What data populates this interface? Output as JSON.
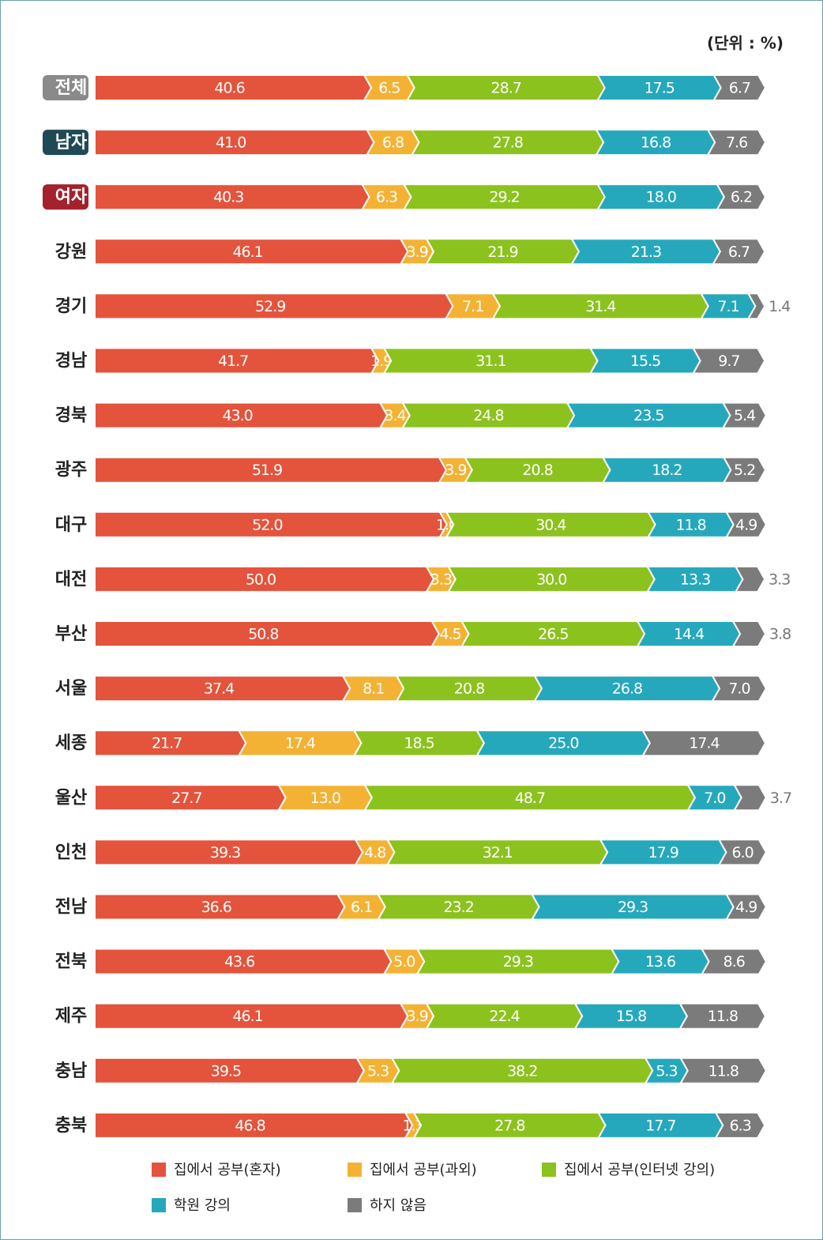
{
  "chart_data": {
    "type": "stacked-bar-horizontal",
    "unit_label": "(단위 : %)",
    "categories": [
      "전체",
      "남자",
      "여자",
      "강원",
      "경기",
      "경남",
      "경북",
      "광주",
      "대구",
      "대전",
      "부산",
      "서울",
      "세종",
      "울산",
      "인천",
      "전남",
      "전북",
      "제주",
      "충남",
      "충북"
    ],
    "series": [
      {
        "name": "집에서 공부(혼자)",
        "color": "#e4533c",
        "values": [
          40.6,
          41.0,
          40.3,
          46.1,
          52.9,
          41.7,
          43.0,
          51.9,
          52.0,
          50.0,
          50.8,
          37.4,
          21.7,
          27.7,
          39.3,
          36.6,
          43.6,
          46.1,
          39.5,
          46.8
        ],
        "value_labels": [
          "40.6",
          "41.0",
          "40.3",
          "46.1",
          "52.9",
          "41.7",
          "43.0",
          "51.9",
          "52.0",
          "50.0",
          "50.8",
          "37.4",
          "21.7",
          "27.7",
          "39.3",
          "36.6",
          "43.6",
          "46.1",
          "39.5",
          "46.8"
        ]
      },
      {
        "name": "집에서 공부(과외)",
        "color": "#f4b234",
        "values": [
          6.5,
          6.8,
          6.3,
          3.9,
          7.1,
          1.9,
          3.4,
          3.9,
          1.0,
          3.3,
          4.5,
          8.1,
          17.4,
          13.0,
          4.8,
          6.1,
          5.0,
          3.9,
          5.3,
          1.3
        ],
        "value_labels": [
          "6.5",
          "6.8",
          "6.3",
          "3.9",
          "7.1",
          "1.9",
          "3.4",
          "3.9",
          "1.0",
          "3.3",
          "4.5",
          "8.1",
          "17.4",
          "13.0",
          "4.8",
          "6.1",
          "5.0",
          "3.9",
          "5.3",
          "1.3"
        ]
      },
      {
        "name": "집에서 공부(인터넷 강의)",
        "color": "#8cc21e",
        "values": [
          28.7,
          27.8,
          29.2,
          21.9,
          31.4,
          31.1,
          24.8,
          20.8,
          30.4,
          30.0,
          26.5,
          20.8,
          18.5,
          48.7,
          32.1,
          23.2,
          29.3,
          22.4,
          38.2,
          27.8
        ],
        "value_labels": [
          "28.7",
          "27.8",
          "29.2",
          "21.9",
          "31.4",
          "31.1",
          "24.8",
          "20.8",
          "30.4",
          "30.0",
          "26.5",
          "20.8",
          "18.5",
          "48.7",
          "32.1",
          "23.2",
          "29.3",
          "22.4",
          "38.2",
          "27.8"
        ]
      },
      {
        "name": "학원 강의",
        "color": "#26a8bc",
        "values": [
          17.5,
          16.8,
          18.0,
          21.3,
          7.1,
          15.5,
          23.5,
          18.2,
          11.8,
          13.3,
          14.4,
          26.8,
          25.0,
          7.0,
          17.9,
          29.3,
          13.6,
          15.8,
          5.3,
          17.7
        ],
        "value_labels": [
          "17.5",
          "16.8",
          "18.0",
          "21.3",
          "7.1",
          "15.5",
          "23.5",
          "18.2",
          "11.8",
          "13.3",
          "14.4",
          "26.8",
          "25.0",
          "7.0",
          "17.9",
          "29.3",
          "13.6",
          "15.8",
          "5.3",
          "17.7"
        ]
      },
      {
        "name": "하지 않음",
        "color": "#7b7b7b",
        "values": [
          6.7,
          7.6,
          6.2,
          6.7,
          1.4,
          9.7,
          5.4,
          5.2,
          4.9,
          3.3,
          3.8,
          7.0,
          17.4,
          3.7,
          6.0,
          4.9,
          8.6,
          11.8,
          11.8,
          6.3
        ],
        "value_labels": [
          "6.7",
          "7.6",
          "6.2",
          "6.7",
          "1.4",
          "9.7",
          "5.4",
          "5.2",
          "4.9",
          "3.3",
          "3.8",
          "7.0",
          "17.4",
          "3.7",
          "6.0",
          "4.9",
          "8.6",
          "11.8",
          "11.8",
          "6.3"
        ]
      }
    ],
    "xlim": [
      0,
      100
    ]
  }
}
